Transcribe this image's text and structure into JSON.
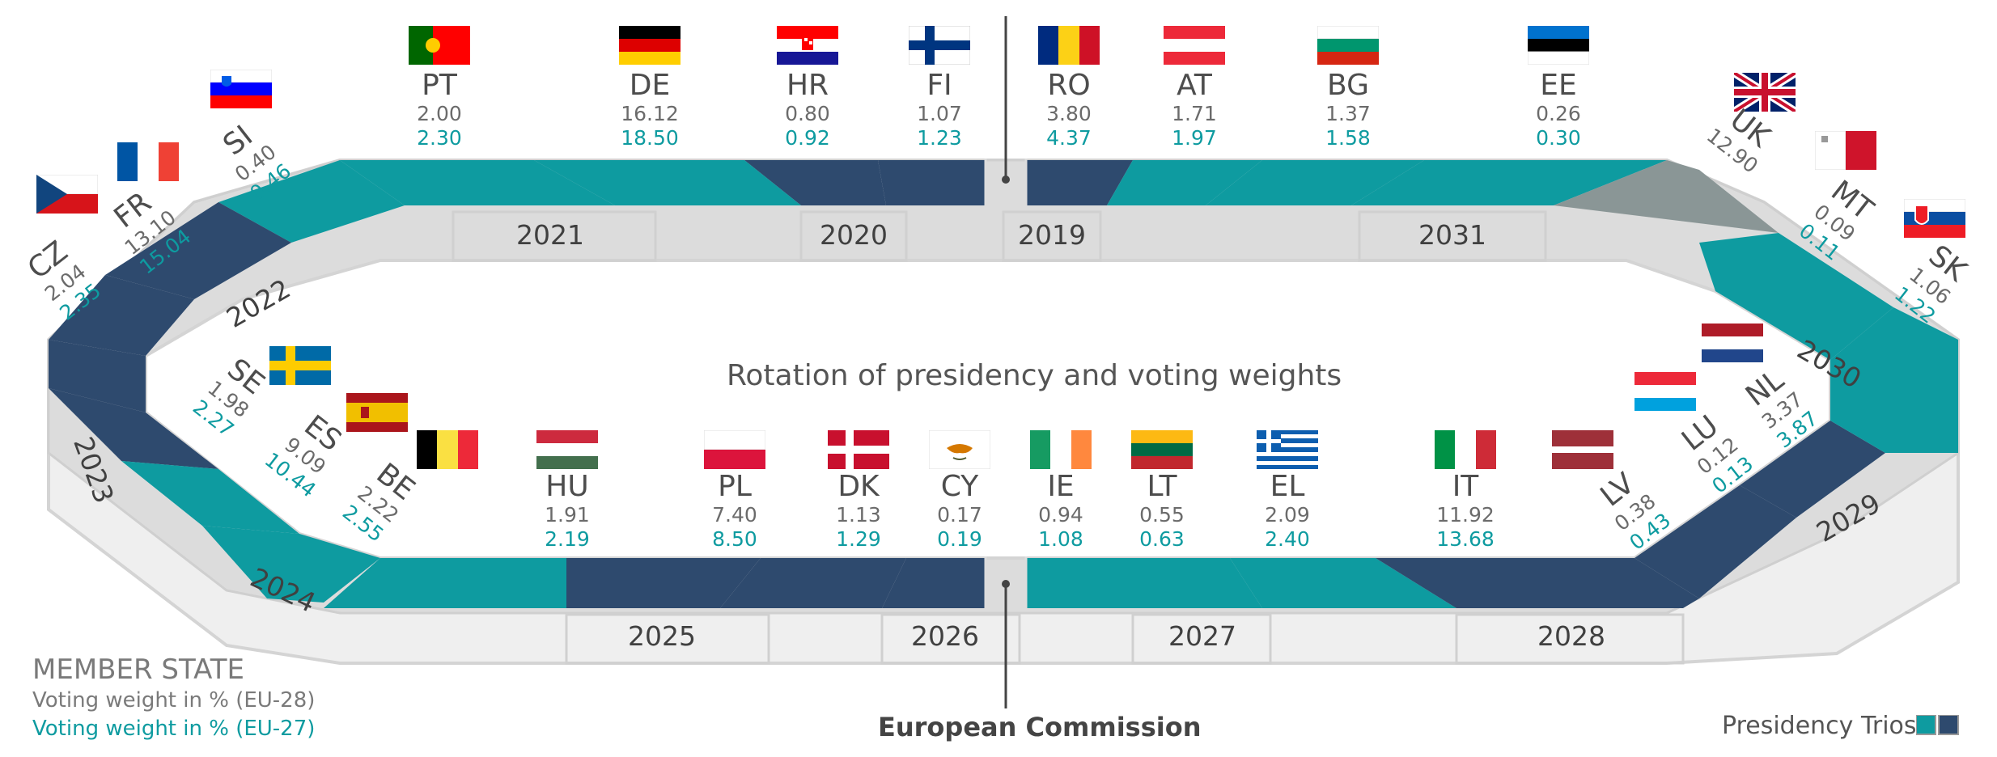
{
  "title": "Rotation of presidency and voting weights",
  "legend": {
    "heading": "MEMBER STATE",
    "line_eu28": "Voting weight in % (EU-28)",
    "line_eu27": "Voting weight in % (EU-27)",
    "trios": "Presidency Trios"
  },
  "commission_label": "European Commission",
  "colors": {
    "teal": "#0e9ba0",
    "navy": "#2e4a6e",
    "grey": "#8a9696",
    "track": "#dcdcdc"
  },
  "years": [
    "2019",
    "2020",
    "2021",
    "2022",
    "2023",
    "2024",
    "2025",
    "2026",
    "2027",
    "2028",
    "2029",
    "2030",
    "2031"
  ],
  "states": [
    {
      "code": "RO",
      "w28": "3.80",
      "w27": "4.37",
      "flag": "romania-flag"
    },
    {
      "code": "FI",
      "w28": "1.07",
      "w27": "1.23",
      "flag": "finland-flag"
    },
    {
      "code": "HR",
      "w28": "0.80",
      "w27": "0.92",
      "flag": "croatia-flag"
    },
    {
      "code": "DE",
      "w28": "16.12",
      "w27": "18.50",
      "flag": "germany-flag"
    },
    {
      "code": "PT",
      "w28": "2.00",
      "w27": "2.30",
      "flag": "portugal-flag"
    },
    {
      "code": "SI",
      "w28": "0.40",
      "w27": "0.46",
      "flag": "slovenia-flag"
    },
    {
      "code": "FR",
      "w28": "13.10",
      "w27": "15.04",
      "flag": "france-flag"
    },
    {
      "code": "CZ",
      "w28": "2.04",
      "w27": "2.35",
      "flag": "czechia-flag"
    },
    {
      "code": "SE",
      "w28": "1.98",
      "w27": "2.27",
      "flag": "sweden-flag"
    },
    {
      "code": "ES",
      "w28": "9.09",
      "w27": "10.44",
      "flag": "spain-flag"
    },
    {
      "code": "BE",
      "w28": "2.22",
      "w27": "2.55",
      "flag": "belgium-flag"
    },
    {
      "code": "HU",
      "w28": "1.91",
      "w27": "2.19",
      "flag": "hungary-flag"
    },
    {
      "code": "PL",
      "w28": "7.40",
      "w27": "8.50",
      "flag": "poland-flag"
    },
    {
      "code": "DK",
      "w28": "1.13",
      "w27": "1.29",
      "flag": "denmark-flag"
    },
    {
      "code": "CY",
      "w28": "0.17",
      "w27": "0.19",
      "flag": "cyprus-flag"
    },
    {
      "code": "IE",
      "w28": "0.94",
      "w27": "1.08",
      "flag": "ireland-flag"
    },
    {
      "code": "LT",
      "w28": "0.55",
      "w27": "0.63",
      "flag": "lithuania-flag"
    },
    {
      "code": "EL",
      "w28": "2.09",
      "w27": "2.40",
      "flag": "greece-flag"
    },
    {
      "code": "IT",
      "w28": "11.92",
      "w27": "13.68",
      "flag": "italy-flag"
    },
    {
      "code": "LV",
      "w28": "0.38",
      "w27": "0.43",
      "flag": "latvia-flag"
    },
    {
      "code": "LU",
      "w28": "0.12",
      "w27": "0.13",
      "flag": "luxembourg-flag"
    },
    {
      "code": "NL",
      "w28": "3.37",
      "w27": "3.87",
      "flag": "netherlands-flag"
    },
    {
      "code": "SK",
      "w28": "1.06",
      "w27": "1.22",
      "flag": "slovakia-flag"
    },
    {
      "code": "MT",
      "w28": "0.09",
      "w27": "0.11",
      "flag": "malta-flag"
    },
    {
      "code": "UK",
      "w28": "12.90",
      "w27": "",
      "flag": "uk-flag"
    },
    {
      "code": "EE",
      "w28": "0.26",
      "w27": "0.30",
      "flag": "estonia-flag"
    },
    {
      "code": "BG",
      "w28": "1.37",
      "w27": "1.58",
      "flag": "bulgaria-flag"
    },
    {
      "code": "AT",
      "w28": "1.71",
      "w27": "1.97",
      "flag": "austria-flag"
    }
  ]
}
